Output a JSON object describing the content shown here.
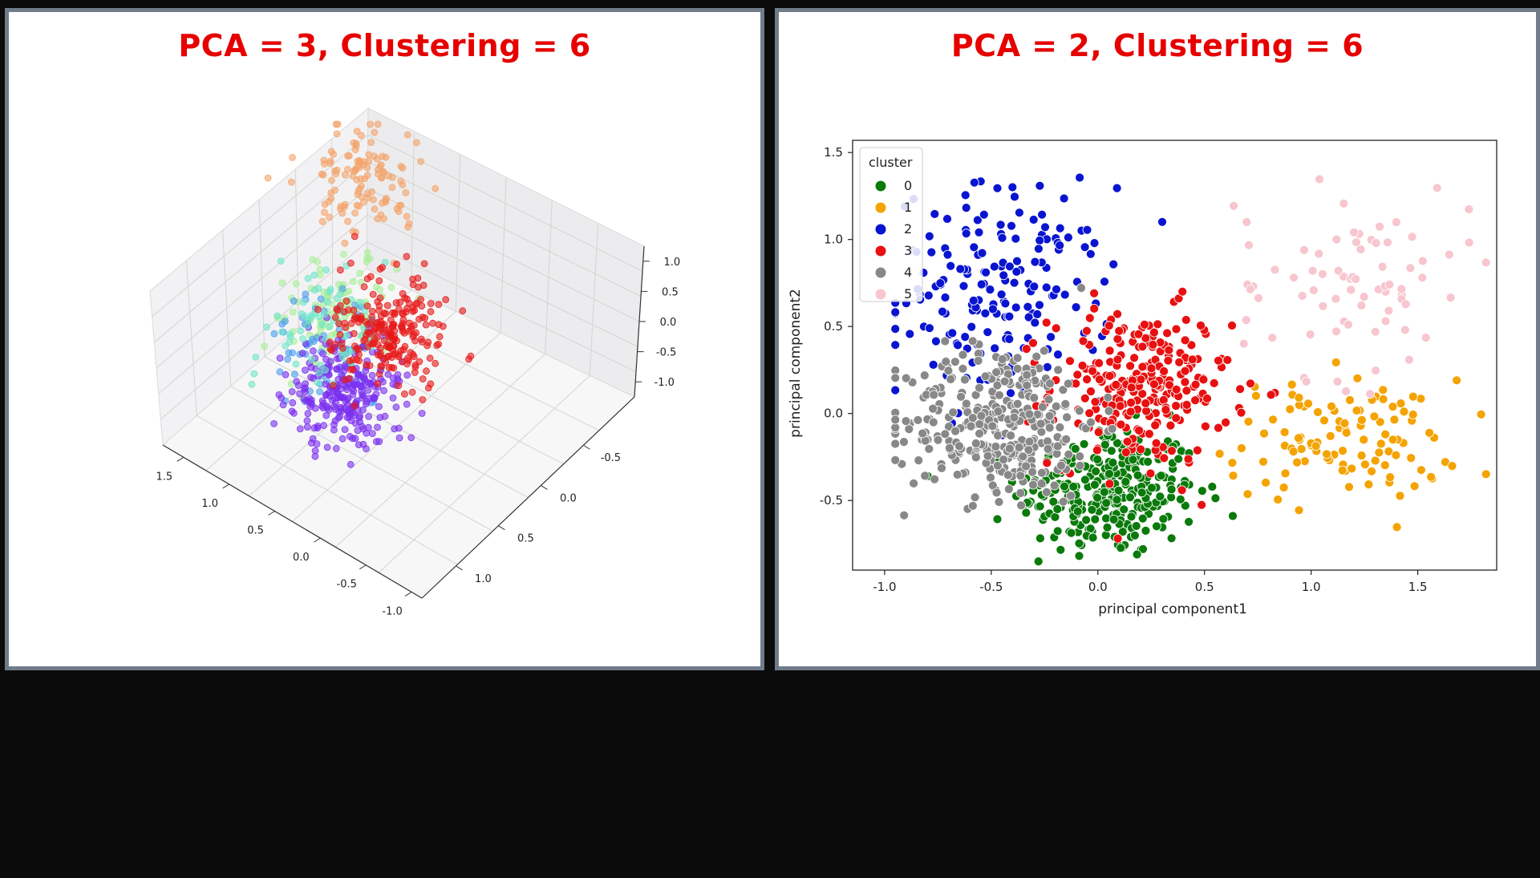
{
  "panels": {
    "left": {
      "title": "PCA = 3, Clustering = 6"
    },
    "right": {
      "title": "PCA = 2, Clustering = 6"
    }
  },
  "chart_data": [
    {
      "type": "scatter",
      "title": "PCA = 3, Clustering = 6",
      "dimensions": 3,
      "axes": {
        "x": {
          "ticks": [
            "1.5",
            "1.0",
            "0.5",
            "0.0",
            "-0.5",
            "-1.0"
          ]
        },
        "y": {
          "ticks": [
            "-0.5",
            "0.0",
            "0.5",
            "1.0"
          ]
        },
        "z": {
          "ticks": [
            "1.0",
            "0.5",
            "0.0",
            "-0.5",
            "-1.0"
          ]
        }
      },
      "grid": true,
      "series": [
        {
          "color": "#f4a46a",
          "center": [
            1.3,
            0.9,
            0.6
          ],
          "count": 120
        },
        {
          "color": "#a8ee98",
          "center": [
            0.6,
            -0.2,
            0.5
          ],
          "count": 110
        },
        {
          "color": "#4f9fee",
          "center": [
            0.3,
            -0.5,
            0.6
          ],
          "count": 60
        },
        {
          "color": "#7a2ff0",
          "center": [
            0.0,
            -0.6,
            0.3
          ],
          "count": 260
        },
        {
          "color": "#6fe6c8",
          "center": [
            0.9,
            0.1,
            -0.2
          ],
          "count": 70
        },
        {
          "color": "#e81818",
          "center": [
            0.5,
            0.4,
            -0.4
          ],
          "count": 230
        }
      ]
    },
    {
      "type": "scatter",
      "title": "PCA = 2, Clustering = 6",
      "xlabel": "principal component1",
      "ylabel": "principal component2",
      "xlim": [
        -1.15,
        1.87
      ],
      "ylim": [
        -0.9,
        1.57
      ],
      "xticks": [
        -1.0,
        -0.5,
        0.0,
        0.5,
        1.0,
        1.5
      ],
      "yticks": [
        -0.5,
        0.0,
        0.5,
        1.0,
        1.5
      ],
      "grid": false,
      "legend": {
        "title": "cluster",
        "position": "top-left"
      },
      "series": [
        {
          "name": "0",
          "color": "#0a7a0a",
          "center": [
            0.05,
            -0.45
          ],
          "spread": [
            0.42,
            0.38
          ],
          "count": 300
        },
        {
          "name": "1",
          "color": "#f4a300",
          "center": [
            1.15,
            -0.15
          ],
          "spread": [
            0.55,
            0.35
          ],
          "count": 110
        },
        {
          "name": "2",
          "color": "#0a14d0",
          "center": [
            -0.45,
            0.7
          ],
          "spread": [
            0.5,
            0.6
          ],
          "count": 180
        },
        {
          "name": "3",
          "color": "#e81010",
          "center": [
            0.2,
            0.15
          ],
          "spread": [
            0.42,
            0.45
          ],
          "count": 260
        },
        {
          "name": "4",
          "color": "#888888",
          "center": [
            -0.45,
            -0.05
          ],
          "spread": [
            0.45,
            0.45
          ],
          "count": 330
        },
        {
          "name": "5",
          "color": "#f7c6cf",
          "center": [
            1.2,
            0.75
          ],
          "spread": [
            0.55,
            0.55
          ],
          "count": 75
        }
      ]
    }
  ]
}
